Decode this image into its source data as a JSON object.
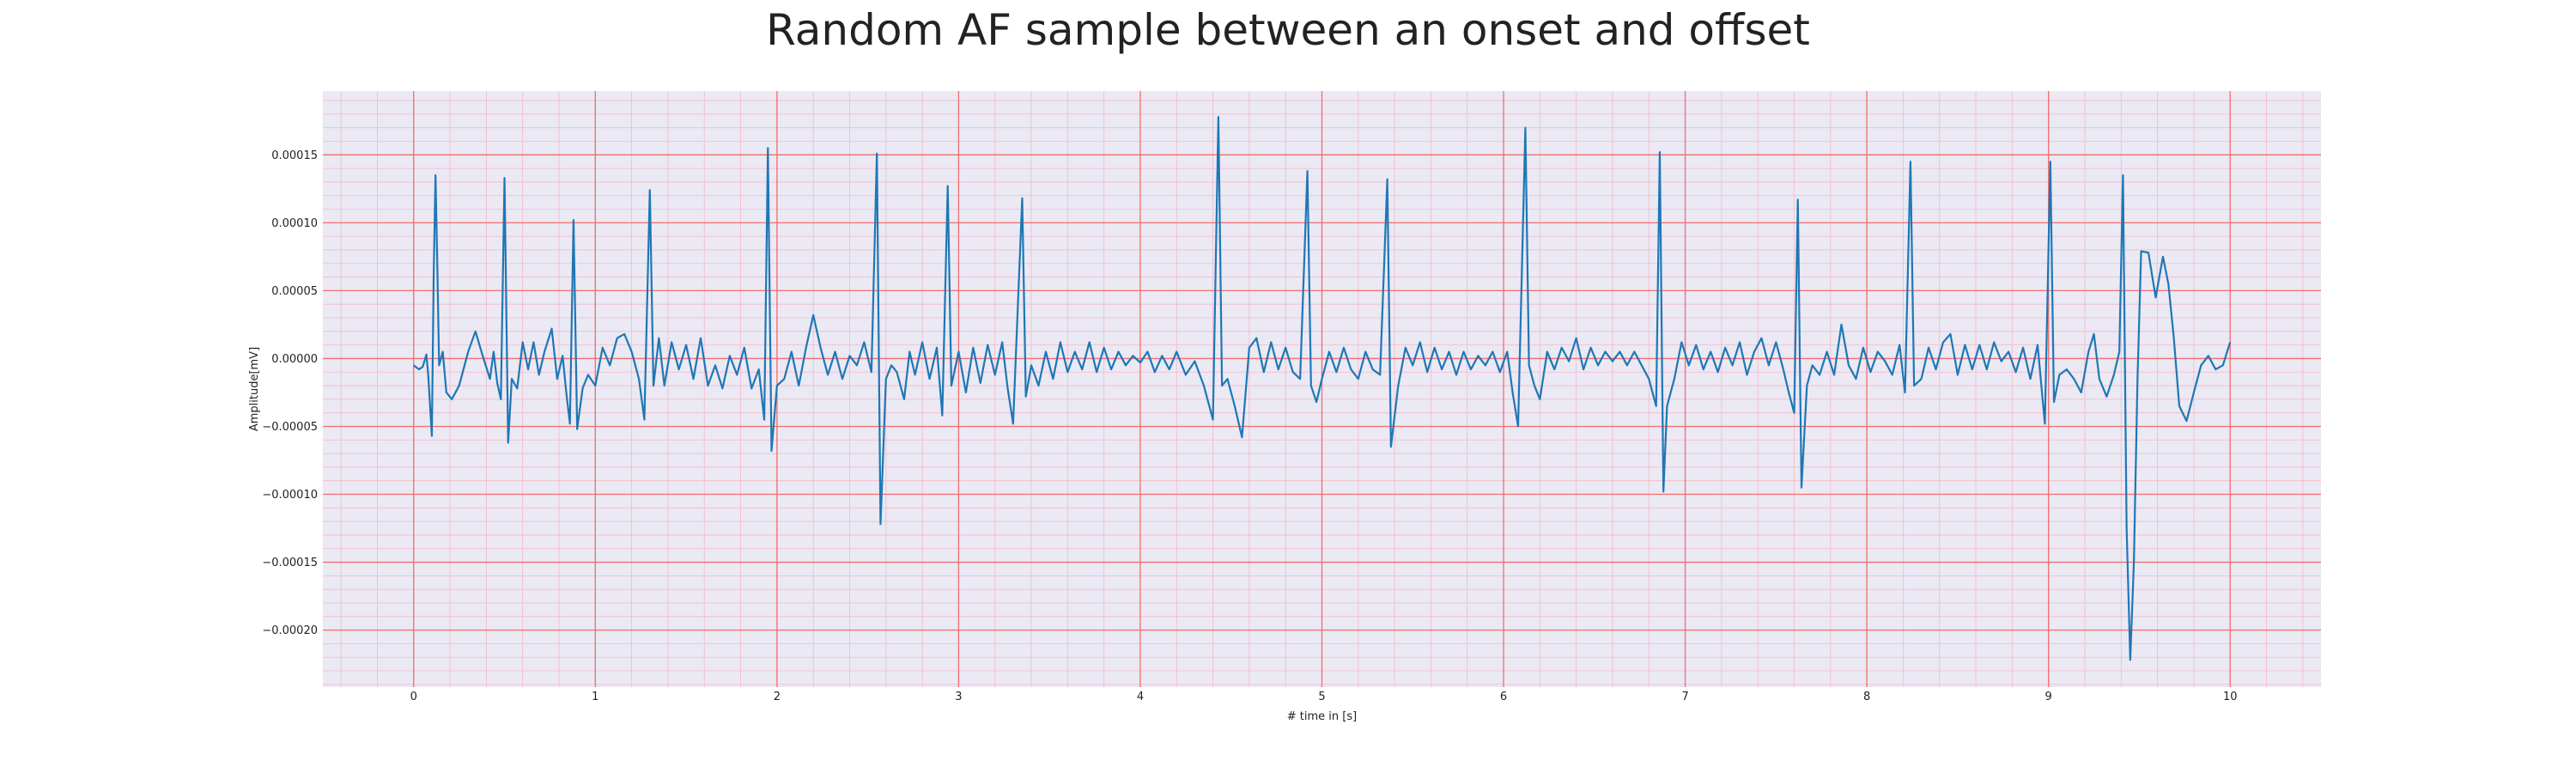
{
  "chart_data": {
    "type": "line",
    "title": "Random AF sample between an onset and offset",
    "xlabel": "# time in [s]",
    "ylabel": "Amplitude[mV]",
    "xlim": [
      -0.5,
      10.5
    ],
    "ylim": [
      -0.000242,
      0.000197
    ],
    "x_major_ticks": [
      0,
      1,
      2,
      3,
      4,
      5,
      6,
      7,
      8,
      9,
      10
    ],
    "x_tick_labels": [
      "0",
      "1",
      "2",
      "3",
      "4",
      "5",
      "6",
      "7",
      "8",
      "9",
      "10"
    ],
    "x_minor_step": 0.2,
    "y_major_ticks": [
      -0.0002,
      -0.00015,
      -0.0001,
      -5e-05,
      0,
      5e-05,
      0.0001,
      0.00015
    ],
    "y_tick_labels": [
      "−0.00020",
      "−0.00015",
      "−0.00010",
      "−0.00005",
      "0.00000",
      "0.00005",
      "0.00010",
      "0.00015"
    ],
    "y_minor_step": 1e-05,
    "grid": true,
    "colors": {
      "line": "#1f77b4",
      "plot_background": "#eae9f4",
      "major_grid": "#f26d6d",
      "minor_grid": "#f6b8c6"
    },
    "series": [
      {
        "points": [
          [
            0.0,
            -5e-06
          ],
          [
            0.03,
            -8e-06
          ],
          [
            0.05,
            -6e-06
          ],
          [
            0.07,
            3e-06
          ],
          [
            0.08,
            -1.2e-05
          ],
          [
            0.1,
            -5.7e-05
          ],
          [
            0.11,
            6e-05
          ],
          [
            0.12,
            0.000135
          ],
          [
            0.13,
            7e-05
          ],
          [
            0.14,
            -5e-06
          ],
          [
            0.16,
            5e-06
          ],
          [
            0.18,
            -2.5e-05
          ],
          [
            0.21,
            -3e-05
          ],
          [
            0.25,
            -2e-05
          ],
          [
            0.3,
            5e-06
          ],
          [
            0.34,
            2e-05
          ],
          [
            0.38,
            2e-06
          ],
          [
            0.42,
            -1.5e-05
          ],
          [
            0.44,
            5e-06
          ],
          [
            0.46,
            -1.8e-05
          ],
          [
            0.48,
            -3e-05
          ],
          [
            0.5,
            0.000133
          ],
          [
            0.52,
            -6.2e-05
          ],
          [
            0.54,
            -1.5e-05
          ],
          [
            0.57,
            -2.2e-05
          ],
          [
            0.6,
            1.2e-05
          ],
          [
            0.63,
            -8e-06
          ],
          [
            0.66,
            1.2e-05
          ],
          [
            0.69,
            -1.2e-05
          ],
          [
            0.72,
            5e-06
          ],
          [
            0.76,
            2.2e-05
          ],
          [
            0.79,
            -1.5e-05
          ],
          [
            0.82,
            2e-06
          ],
          [
            0.84,
            -2.5e-05
          ],
          [
            0.86,
            -4.8e-05
          ],
          [
            0.88,
            0.000102
          ],
          [
            0.9,
            -5.2e-05
          ],
          [
            0.93,
            -2.2e-05
          ],
          [
            0.96,
            -1.2e-05
          ],
          [
            1.0,
            -2e-05
          ],
          [
            1.04,
            8e-06
          ],
          [
            1.08,
            -5e-06
          ],
          [
            1.12,
            1.5e-05
          ],
          [
            1.16,
            1.8e-05
          ],
          [
            1.2,
            5e-06
          ],
          [
            1.24,
            -1.5e-05
          ],
          [
            1.27,
            -4.5e-05
          ],
          [
            1.3,
            0.000124
          ],
          [
            1.32,
            -2e-05
          ],
          [
            1.35,
            1.5e-05
          ],
          [
            1.38,
            -2e-05
          ],
          [
            1.42,
            1.2e-05
          ],
          [
            1.46,
            -8e-06
          ],
          [
            1.5,
            1e-05
          ],
          [
            1.54,
            -1.5e-05
          ],
          [
            1.58,
            1.5e-05
          ],
          [
            1.62,
            -2e-05
          ],
          [
            1.66,
            -5e-06
          ],
          [
            1.7,
            -2.2e-05
          ],
          [
            1.74,
            2e-06
          ],
          [
            1.78,
            -1.2e-05
          ],
          [
            1.82,
            8e-06
          ],
          [
            1.86,
            -2.2e-05
          ],
          [
            1.9,
            -8e-06
          ],
          [
            1.93,
            -4.5e-05
          ],
          [
            1.95,
            0.000155
          ],
          [
            1.97,
            -6.8e-05
          ],
          [
            2.0,
            -2e-05
          ],
          [
            2.04,
            -1.5e-05
          ],
          [
            2.08,
            5e-06
          ],
          [
            2.12,
            -2e-05
          ],
          [
            2.16,
            8e-06
          ],
          [
            2.2,
            3.2e-05
          ],
          [
            2.24,
            8e-06
          ],
          [
            2.28,
            -1.2e-05
          ],
          [
            2.32,
            5e-06
          ],
          [
            2.36,
            -1.5e-05
          ],
          [
            2.4,
            2e-06
          ],
          [
            2.44,
            -5e-06
          ],
          [
            2.48,
            1.2e-05
          ],
          [
            2.52,
            -1e-05
          ],
          [
            2.55,
            0.000151
          ],
          [
            2.57,
            -0.000122
          ],
          [
            2.6,
            -1.5e-05
          ],
          [
            2.63,
            -5e-06
          ],
          [
            2.66,
            -1e-05
          ],
          [
            2.7,
            -3e-05
          ],
          [
            2.73,
            5e-06
          ],
          [
            2.76,
            -1.2e-05
          ],
          [
            2.8,
            1.2e-05
          ],
          [
            2.84,
            -1.5e-05
          ],
          [
            2.88,
            8e-06
          ],
          [
            2.91,
            -4.2e-05
          ],
          [
            2.94,
            0.000127
          ],
          [
            2.96,
            -2e-05
          ],
          [
            3.0,
            5e-06
          ],
          [
            3.04,
            -2.5e-05
          ],
          [
            3.08,
            8e-06
          ],
          [
            3.12,
            -1.8e-05
          ],
          [
            3.16,
            1e-05
          ],
          [
            3.2,
            -1.2e-05
          ],
          [
            3.24,
            1.2e-05
          ],
          [
            3.27,
            -2.2e-05
          ],
          [
            3.3,
            -4.8e-05
          ],
          [
            3.35,
            0.000118
          ],
          [
            3.37,
            -2.8e-05
          ],
          [
            3.4,
            -5e-06
          ],
          [
            3.44,
            -2e-05
          ],
          [
            3.48,
            5e-06
          ],
          [
            3.52,
            -1.5e-05
          ],
          [
            3.56,
            1.2e-05
          ],
          [
            3.6,
            -1e-05
          ],
          [
            3.64,
            5e-06
          ],
          [
            3.68,
            -8e-06
          ],
          [
            3.72,
            1.2e-05
          ],
          [
            3.76,
            -1e-05
          ],
          [
            3.8,
            8e-06
          ],
          [
            3.84,
            -8e-06
          ],
          [
            3.88,
            5e-06
          ],
          [
            3.92,
            -5e-06
          ],
          [
            3.96,
            2e-06
          ],
          [
            4.0,
            -3e-06
          ],
          [
            4.04,
            5e-06
          ],
          [
            4.08,
            -1e-05
          ],
          [
            4.12,
            2e-06
          ],
          [
            4.16,
            -8e-06
          ],
          [
            4.2,
            5e-06
          ],
          [
            4.25,
            -1.2e-05
          ],
          [
            4.3,
            -2e-06
          ],
          [
            4.35,
            -2e-05
          ],
          [
            4.4,
            -4.5e-05
          ],
          [
            4.43,
            0.000178
          ],
          [
            4.45,
            -2e-05
          ],
          [
            4.48,
            -1.5e-05
          ],
          [
            4.52,
            -3.5e-05
          ],
          [
            4.56,
            -5.8e-05
          ],
          [
            4.6,
            8e-06
          ],
          [
            4.64,
            1.5e-05
          ],
          [
            4.68,
            -1e-05
          ],
          [
            4.72,
            1.2e-05
          ],
          [
            4.76,
            -8e-06
          ],
          [
            4.8,
            8e-06
          ],
          [
            4.84,
            -1e-05
          ],
          [
            4.88,
            -1.5e-05
          ],
          [
            4.92,
            0.000138
          ],
          [
            4.94,
            -2e-05
          ],
          [
            4.97,
            -3.2e-05
          ],
          [
            5.0,
            -1.5e-05
          ],
          [
            5.04,
            5e-06
          ],
          [
            5.08,
            -1e-05
          ],
          [
            5.12,
            8e-06
          ],
          [
            5.16,
            -8e-06
          ],
          [
            5.2,
            -1.5e-05
          ],
          [
            5.24,
            5e-06
          ],
          [
            5.28,
            -8e-06
          ],
          [
            5.32,
            -1.2e-05
          ],
          [
            5.36,
            0.000132
          ],
          [
            5.38,
            -6.5e-05
          ],
          [
            5.42,
            -2e-05
          ],
          [
            5.46,
            8e-06
          ],
          [
            5.5,
            -5e-06
          ],
          [
            5.54,
            1.2e-05
          ],
          [
            5.58,
            -1e-05
          ],
          [
            5.62,
            8e-06
          ],
          [
            5.66,
            -8e-06
          ],
          [
            5.7,
            5e-06
          ],
          [
            5.74,
            -1.2e-05
          ],
          [
            5.78,
            5e-06
          ],
          [
            5.82,
            -8e-06
          ],
          [
            5.86,
            2e-06
          ],
          [
            5.9,
            -5e-06
          ],
          [
            5.94,
            5e-06
          ],
          [
            5.98,
            -1e-05
          ],
          [
            6.02,
            5e-06
          ],
          [
            6.05,
            -2.5e-05
          ],
          [
            6.08,
            -5e-05
          ],
          [
            6.12,
            0.00017
          ],
          [
            6.14,
            -5e-06
          ],
          [
            6.17,
            -2e-05
          ],
          [
            6.2,
            -3e-05
          ],
          [
            6.24,
            5e-06
          ],
          [
            6.28,
            -8e-06
          ],
          [
            6.32,
            8e-06
          ],
          [
            6.36,
            -2e-06
          ],
          [
            6.4,
            1.5e-05
          ],
          [
            6.44,
            -8e-06
          ],
          [
            6.48,
            8e-06
          ],
          [
            6.52,
            -5e-06
          ],
          [
            6.56,
            5e-06
          ],
          [
            6.6,
            -2e-06
          ],
          [
            6.64,
            5e-06
          ],
          [
            6.68,
            -5e-06
          ],
          [
            6.72,
            5e-06
          ],
          [
            6.76,
            -5e-06
          ],
          [
            6.8,
            -1.5e-05
          ],
          [
            6.84,
            -3.5e-05
          ],
          [
            6.86,
            0.000152
          ],
          [
            6.88,
            -9.8e-05
          ],
          [
            6.9,
            -3.5e-05
          ],
          [
            6.94,
            -1.5e-05
          ],
          [
            6.98,
            1.2e-05
          ],
          [
            7.02,
            -5e-06
          ],
          [
            7.06,
            1e-05
          ],
          [
            7.1,
            -8e-06
          ],
          [
            7.14,
            5e-06
          ],
          [
            7.18,
            -1e-05
          ],
          [
            7.22,
            8e-06
          ],
          [
            7.26,
            -5e-06
          ],
          [
            7.3,
            1.2e-05
          ],
          [
            7.34,
            -1.2e-05
          ],
          [
            7.38,
            5e-06
          ],
          [
            7.42,
            1.5e-05
          ],
          [
            7.46,
            -5e-06
          ],
          [
            7.5,
            1.2e-05
          ],
          [
            7.54,
            -8e-06
          ],
          [
            7.57,
            -2.5e-05
          ],
          [
            7.6,
            -4e-05
          ],
          [
            7.62,
            0.000117
          ],
          [
            7.64,
            -9.5e-05
          ],
          [
            7.67,
            -2e-05
          ],
          [
            7.7,
            -5e-06
          ],
          [
            7.74,
            -1.2e-05
          ],
          [
            7.78,
            5e-06
          ],
          [
            7.82,
            -1.2e-05
          ],
          [
            7.86,
            2.5e-05
          ],
          [
            7.9,
            -5e-06
          ],
          [
            7.94,
            -1.5e-05
          ],
          [
            7.98,
            8e-06
          ],
          [
            8.02,
            -1e-05
          ],
          [
            8.06,
            5e-06
          ],
          [
            8.1,
            -2e-06
          ],
          [
            8.14,
            -1.2e-05
          ],
          [
            8.18,
            1e-05
          ],
          [
            8.21,
            -2.5e-05
          ],
          [
            8.24,
            0.000145
          ],
          [
            8.26,
            -2e-05
          ],
          [
            8.3,
            -1.5e-05
          ],
          [
            8.34,
            8e-06
          ],
          [
            8.38,
            -8e-06
          ],
          [
            8.42,
            1.2e-05
          ],
          [
            8.46,
            1.8e-05
          ],
          [
            8.5,
            -1.2e-05
          ],
          [
            8.54,
            1e-05
          ],
          [
            8.58,
            -8e-06
          ],
          [
            8.62,
            1e-05
          ],
          [
            8.66,
            -8e-06
          ],
          [
            8.7,
            1.2e-05
          ],
          [
            8.74,
            -2e-06
          ],
          [
            8.78,
            5e-06
          ],
          [
            8.82,
            -1e-05
          ],
          [
            8.86,
            8e-06
          ],
          [
            8.9,
            -1.5e-05
          ],
          [
            8.94,
            1e-05
          ],
          [
            8.98,
            -4.8e-05
          ],
          [
            9.01,
            0.000145
          ],
          [
            9.03,
            -3.2e-05
          ],
          [
            9.06,
            -1.2e-05
          ],
          [
            9.1,
            -8e-06
          ],
          [
            9.14,
            -1.5e-05
          ],
          [
            9.18,
            -2.5e-05
          ],
          [
            9.22,
            5e-06
          ],
          [
            9.25,
            1.8e-05
          ],
          [
            9.28,
            -1.5e-05
          ],
          [
            9.32,
            -2.8e-05
          ],
          [
            9.36,
            -1.2e-05
          ],
          [
            9.39,
            5e-06
          ],
          [
            9.41,
            0.000135
          ],
          [
            9.43,
            -0.000125
          ],
          [
            9.45,
            -0.000222
          ],
          [
            9.47,
            -0.00015
          ],
          [
            9.49,
            -1.5e-05
          ],
          [
            9.51,
            7.9e-05
          ],
          [
            9.55,
            7.8e-05
          ],
          [
            9.59,
            4.5e-05
          ],
          [
            9.63,
            7.5e-05
          ],
          [
            9.66,
            5.5e-05
          ],
          [
            9.69,
            1.5e-05
          ],
          [
            9.72,
            -3.5e-05
          ],
          [
            9.76,
            -4.6e-05
          ],
          [
            9.8,
            -2.5e-05
          ],
          [
            9.84,
            -5e-06
          ],
          [
            9.88,
            2e-06
          ],
          [
            9.92,
            -8e-06
          ],
          [
            9.96,
            -5e-06
          ],
          [
            10.0,
            1.2e-05
          ]
        ]
      }
    ]
  }
}
